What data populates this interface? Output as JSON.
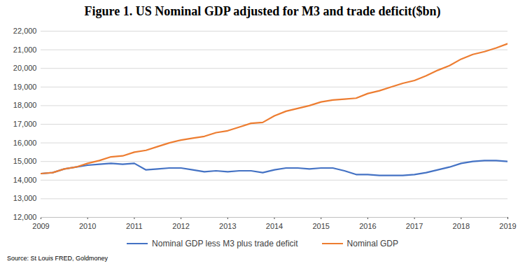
{
  "chart_data": {
    "type": "line",
    "title": "Figure 1. US Nominal GDP adjusted for M3 and trade deficit($bn)",
    "source": "Source: St Louis FRED, Goldmoney",
    "x": [
      2009,
      2009.25,
      2009.5,
      2009.75,
      2010,
      2010.25,
      2010.5,
      2010.75,
      2011,
      2011.25,
      2011.5,
      2011.75,
      2012,
      2012.25,
      2012.5,
      2012.75,
      2013,
      2013.25,
      2013.5,
      2013.75,
      2014,
      2014.25,
      2014.5,
      2014.75,
      2015,
      2015.25,
      2015.5,
      2015.75,
      2016,
      2016.25,
      2016.5,
      2016.75,
      2017,
      2017.25,
      2017.5,
      2017.75,
      2018,
      2018.25,
      2018.5,
      2018.75,
      2019
    ],
    "series": [
      {
        "name": "Nominal GDP less M3 plus trade deficit",
        "color": "#4472c4",
        "values": [
          14350,
          14400,
          14600,
          14700,
          14800,
          14850,
          14900,
          14850,
          14900,
          14550,
          14600,
          14650,
          14650,
          14550,
          14450,
          14500,
          14450,
          14500,
          14500,
          14400,
          14550,
          14650,
          14650,
          14600,
          14650,
          14650,
          14500,
          14300,
          14300,
          14250,
          14250,
          14250,
          14300,
          14400,
          14550,
          14700,
          14900,
          15000,
          15050,
          15050,
          15000
        ]
      },
      {
        "name": "Nominal GDP",
        "color": "#ed7d31",
        "values": [
          14350,
          14400,
          14600,
          14700,
          14900,
          15050,
          15250,
          15300,
          15500,
          15600,
          15800,
          16000,
          16150,
          16250,
          16350,
          16550,
          16650,
          16850,
          17050,
          17100,
          17450,
          17700,
          17850,
          18000,
          18200,
          18300,
          18350,
          18400,
          18650,
          18800,
          19000,
          19200,
          19350,
          19600,
          19900,
          20150,
          20500,
          20750,
          20900,
          21100,
          21330
        ]
      }
    ],
    "xlim": [
      2009,
      2019
    ],
    "xticks": [
      2009,
      2010,
      2011,
      2012,
      2013,
      2014,
      2015,
      2016,
      2017,
      2018,
      2019
    ],
    "ylim": [
      12000,
      22000
    ],
    "yticks": [
      {
        "value": 12000,
        "label": "12,000"
      },
      {
        "value": 13000,
        "label": "13,000"
      },
      {
        "value": 14000,
        "label": "14,000"
      },
      {
        "value": 15000,
        "label": "15,000"
      },
      {
        "value": 16000,
        "label": "16,000"
      },
      {
        "value": 17000,
        "label": "17,000"
      },
      {
        "value": 18000,
        "label": "18,000"
      },
      {
        "value": 19000,
        "label": "19,000"
      },
      {
        "value": 20000,
        "label": "20,000"
      },
      {
        "value": 21000,
        "label": "21,000"
      },
      {
        "value": 22000,
        "label": "22,000"
      }
    ],
    "grid": true,
    "legend": "bottom"
  }
}
